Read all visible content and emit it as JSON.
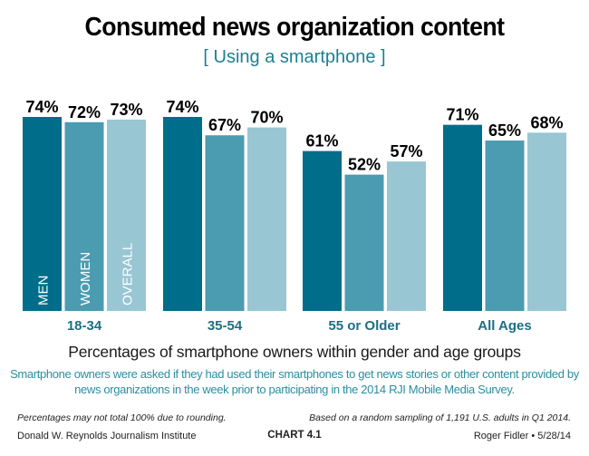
{
  "chart_data": {
    "type": "bar",
    "title": "Consumed news organization content",
    "subtitle": "[ Using a smartphone ]",
    "categories": [
      "18-34",
      "35-54",
      "55 or Older",
      "All Ages"
    ],
    "series": [
      {
        "name": "MEN",
        "color": "#006d8a",
        "values": [
          74,
          74,
          61,
          71
        ]
      },
      {
        "name": "WOMEN",
        "color": "#4b9bb1",
        "values": [
          72,
          67,
          52,
          65
        ]
      },
      {
        "name": "OVERALL",
        "color": "#98c6d3",
        "values": [
          73,
          70,
          57,
          68
        ]
      }
    ],
    "value_suffix": "%",
    "xlabel": "",
    "ylabel": "",
    "ylim": [
      0,
      74
    ],
    "grid": false,
    "legend": "inside-first-group-bars-vertical"
  },
  "caption": "Percentages of smartphone owners within gender and age groups",
  "description": "Smartphone owners were asked if they had used their smartphones to get news stories or other content provided by news organizations in the week prior to participating in the 2014 RJI Mobile Media Survey.",
  "notes": {
    "left": "Percentages may not total 100% due to rounding.",
    "right": "Based on a random sampling of 1,191 U.S. adults in Q1 2014."
  },
  "footer": {
    "left": "Donald W. Reynolds Journalism Institute",
    "center": "CHART 4.1",
    "right": "Roger Fidler • 5/28/14"
  },
  "colors": {
    "category_label": "#1d6f82",
    "value_label": "#000000",
    "legend_text": "#ffffff"
  }
}
